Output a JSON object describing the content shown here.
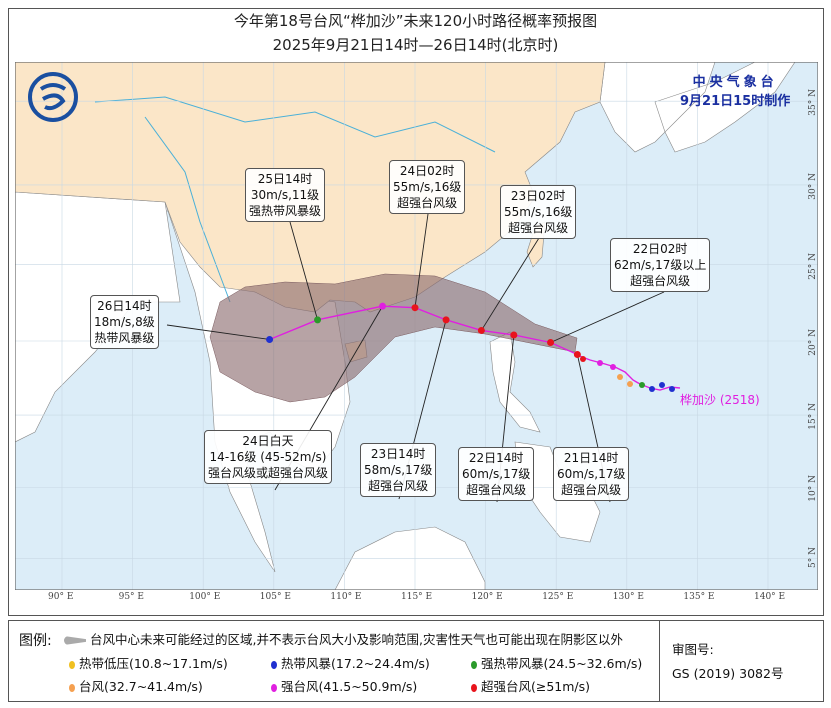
{
  "title": "今年第18号台风“桦加沙”未来120小时路径概率预报图",
  "subtitle": "2025年9月21日14时—26日14时(北京时)",
  "agency": {
    "name": "中央气象台",
    "issued": "9月21日15时制作"
  },
  "typhoon_label": "桦加沙 (2518)",
  "map": {
    "lon_ticks": [
      "90° E",
      "95° E",
      "100° E",
      "105° E",
      "110° E",
      "115° E",
      "120° E",
      "125° E",
      "130° E",
      "135° E",
      "140° E"
    ],
    "lat_ticks": [
      "35° N",
      "30° N",
      "25° N",
      "20° N",
      "15° N",
      "10° N",
      "5° N"
    ],
    "colors": {
      "china": "#fbe6c8",
      "other_land": "#ffffff",
      "sea": "#dcedf8",
      "cone": "#8a6a6e",
      "track": "#e020e0"
    }
  },
  "forecast_points": [
    {
      "time": "21日14时",
      "lon": 126.5,
      "lat": 19.1,
      "speed": "60m/s,17级",
      "grade": "超强台风级",
      "color": "#e8141c"
    },
    {
      "time": "22日02时",
      "lon": 124.6,
      "lat": 19.9,
      "speed": "62m/s,17级以上",
      "grade": "超强台风级",
      "color": "#e8141c"
    },
    {
      "time": "22日14时",
      "lon": 122.0,
      "lat": 20.4,
      "speed": "60m/s,17级",
      "grade": "超强台风级",
      "color": "#e8141c"
    },
    {
      "time": "23日02时",
      "lon": 119.7,
      "lat": 20.7,
      "speed": "55m/s,16级",
      "grade": "超强台风级",
      "color": "#e8141c"
    },
    {
      "time": "23日14时",
      "lon": 117.2,
      "lat": 21.4,
      "speed": "58m/s,17级",
      "grade": "超强台风级",
      "color": "#e8141c"
    },
    {
      "time": "24日02时",
      "lon": 115.0,
      "lat": 22.2,
      "speed": "55m/s,16级",
      "grade": "超强台风级",
      "color": "#e8141c"
    },
    {
      "time": "24日白天",
      "lon": 112.7,
      "lat": 22.3,
      "speed": "14-16级 (45-52m/s)",
      "grade": "强台风级或超强台风级",
      "color": "#e020e0"
    },
    {
      "time": "25日14时",
      "lon": 108.1,
      "lat": 21.4,
      "speed": "30m/s,11级",
      "grade": "强热带风暴级",
      "color": "#2a9a2a"
    },
    {
      "time": "26日14时",
      "lon": 104.7,
      "lat": 20.1,
      "speed": "18m/s,8级",
      "grade": "热带风暴级",
      "color": "#2030d0"
    }
  ],
  "legend": {
    "label": "图例:",
    "cone_text": "台风中心未来可能经过的区域,并不表示台风大小及影响范围,灾害性天气也可能出现在阴影区以外",
    "items": [
      {
        "text": "热带低压(10.8~17.1m/s)",
        "color": "#f0c020"
      },
      {
        "text": "热带风暴(17.2~24.4m/s)",
        "color": "#2030d0"
      },
      {
        "text": "强热带风暴(24.5~32.6m/s)",
        "color": "#2a9a2a"
      },
      {
        "text": "台风(32.7~41.4m/s)",
        "color": "#f5a050"
      },
      {
        "text": "强台风(41.5~50.9m/s)",
        "color": "#e020e0"
      },
      {
        "text": "超强台风(≥51m/s)",
        "color": "#e8141c"
      }
    ],
    "approval_label": "审图号:",
    "approval_no": "GS (2019) 3082号"
  }
}
